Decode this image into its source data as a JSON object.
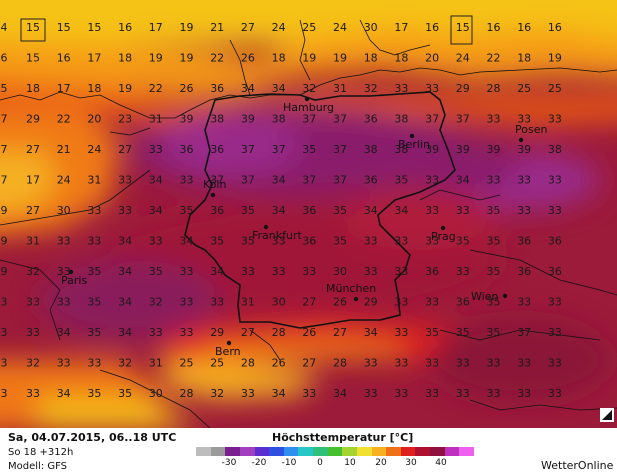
{
  "map": {
    "numbers": [
      [
        "4",
        "15",
        "15",
        "15",
        "16",
        "17",
        "19",
        "21",
        "27",
        "24",
        "25",
        "24",
        "30",
        "17",
        "16",
        "15",
        "16",
        "16",
        "16"
      ],
      [
        "6",
        "15",
        "16",
        "17",
        "18",
        "19",
        "19",
        "22",
        "26",
        "18",
        "19",
        "19",
        "18",
        "18",
        "20",
        "24",
        "22",
        "18",
        "19"
      ],
      [
        "5",
        "18",
        "17",
        "18",
        "19",
        "22",
        "26",
        "36",
        "34",
        "34",
        "32",
        "31",
        "32",
        "33",
        "33",
        "29",
        "28",
        "25",
        "25"
      ],
      [
        "7",
        "29",
        "22",
        "20",
        "23",
        "31",
        "39",
        "38",
        "39",
        "38",
        "37",
        "37",
        "36",
        "38",
        "37",
        "37",
        "33",
        "33",
        "33"
      ],
      [
        "7",
        "27",
        "21",
        "24",
        "27",
        "33",
        "36",
        "36",
        "37",
        "37",
        "35",
        "37",
        "38",
        "38",
        "39",
        "39",
        "39",
        "39",
        "38"
      ],
      [
        "7",
        "17",
        "24",
        "31",
        "33",
        "34",
        "33",
        "37",
        "37",
        "34",
        "37",
        "37",
        "36",
        "35",
        "33",
        "34",
        "33",
        "33",
        "33"
      ],
      [
        "9",
        "27",
        "30",
        "33",
        "33",
        "34",
        "35",
        "36",
        "35",
        "34",
        "36",
        "35",
        "34",
        "34",
        "33",
        "33",
        "35",
        "33",
        "33"
      ],
      [
        "9",
        "31",
        "33",
        "33",
        "34",
        "33",
        "34",
        "35",
        "35",
        "33",
        "36",
        "35",
        "33",
        "33",
        "33",
        "35",
        "35",
        "36",
        "36"
      ],
      [
        "9",
        "32",
        "33",
        "35",
        "34",
        "35",
        "33",
        "34",
        "33",
        "33",
        "33",
        "30",
        "33",
        "33",
        "36",
        "33",
        "35",
        "36",
        "36"
      ],
      [
        "3",
        "33",
        "33",
        "35",
        "34",
        "32",
        "33",
        "33",
        "31",
        "30",
        "27",
        "26",
        "29",
        "33",
        "33",
        "36",
        "35",
        "33",
        "33"
      ],
      [
        "3",
        "33",
        "34",
        "35",
        "34",
        "33",
        "33",
        "29",
        "27",
        "28",
        "26",
        "27",
        "34",
        "33",
        "35",
        "35",
        "35",
        "37",
        "33"
      ],
      [
        "3",
        "32",
        "33",
        "33",
        "32",
        "31",
        "25",
        "25",
        "28",
        "26",
        "27",
        "28",
        "33",
        "33",
        "33",
        "33",
        "33",
        "33",
        "33"
      ],
      [
        "3",
        "33",
        "34",
        "35",
        "35",
        "30",
        "28",
        "32",
        "33",
        "34",
        "33",
        "34",
        "33",
        "33",
        "33",
        "33",
        "33",
        "33",
        "33"
      ]
    ],
    "cities": [
      {
        "name": "Hamburg"
      },
      {
        "name": "Berlin"
      },
      {
        "name": "Posen"
      },
      {
        "name": "Köln"
      },
      {
        "name": "Frankfurt"
      },
      {
        "name": "Prag"
      },
      {
        "name": "Paris"
      },
      {
        "name": "München"
      },
      {
        "name": "Wien"
      },
      {
        "name": "Bern"
      }
    ]
  },
  "footer": {
    "date": "Sa, 04.07.2015, 06..18 UTC",
    "run": "So 18 +312h",
    "model": "Modell: GFS",
    "legend_title": "Höchsttemperatur [°C]",
    "brand": "WetterOnline"
  },
  "legend": {
    "ticks": [
      "-30",
      "-20",
      "-10",
      "0",
      "10",
      "20",
      "30",
      "40"
    ],
    "colors": [
      "#bdbdbd",
      "#9a9a9a",
      "#7a1f8f",
      "#a13fbf",
      "#5a2fd0",
      "#2e4fe0",
      "#2f8ff0",
      "#27c7c7",
      "#2fc07a",
      "#47c02f",
      "#a4d42f",
      "#f0e030",
      "#f8b020",
      "#f07018",
      "#e02020",
      "#b01030",
      "#901040",
      "#c030c0",
      "#f060f0"
    ]
  },
  "icons": {
    "zoom": "zoom-corner-icon",
    "label_box": "highlight-box-icon"
  }
}
